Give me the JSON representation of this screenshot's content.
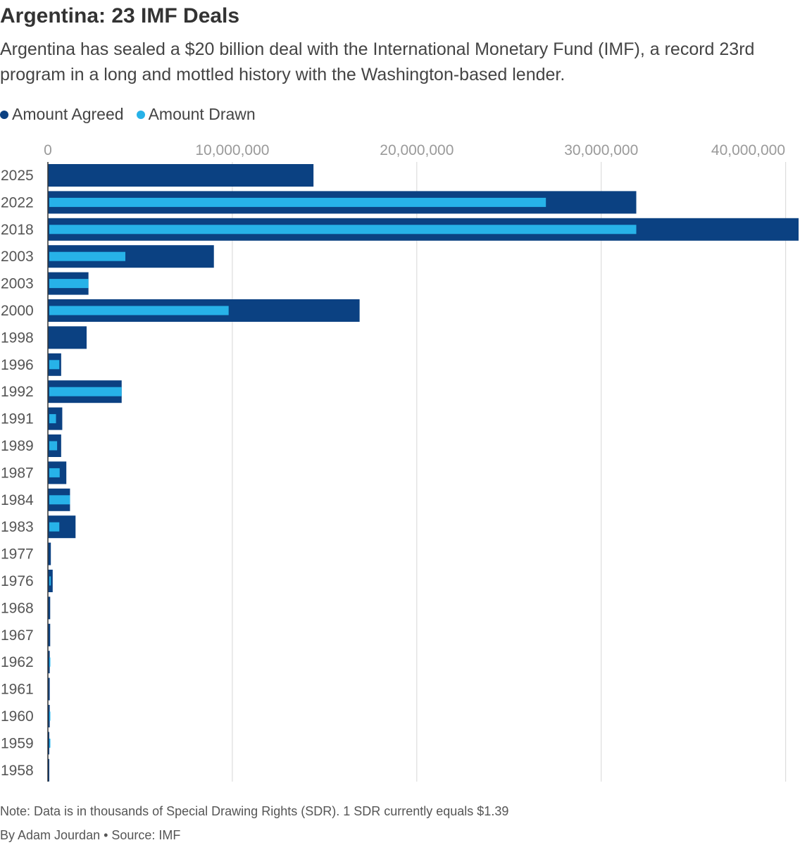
{
  "header": {
    "title": "Argentina: 23 IMF Deals",
    "subtitle": "Argentina has sealed a $20 billion deal with the International Monetary Fund (IMF), a record 23rd program in a long and mottled history with the Washington-based lender."
  },
  "legend": {
    "agreed_label": "Amount Agreed",
    "drawn_label": "Amount Drawn"
  },
  "footer": {
    "note": "Note: Data is in thousands of Special Drawing Rights (SDR). 1 SDR currently equals $1.39",
    "credit": "By Adam Jourdan • Source: IMF"
  },
  "colors": {
    "agreed": "#0b4182",
    "drawn": "#27b2e8",
    "grid": "#d6d6d6",
    "tick_text": "#9a9a9a",
    "category_text": "#555555"
  },
  "chart_data": {
    "type": "bar",
    "orientation": "horizontal",
    "categories": [
      "2025",
      "2022",
      "2018",
      "2003",
      "2003",
      "2000",
      "1998",
      "1996",
      "1992",
      "1991",
      "1989",
      "1987",
      "1984",
      "1983",
      "1977",
      "1976",
      "1968",
      "1967",
      "1962",
      "1961",
      "1960",
      "1959",
      "1958"
    ],
    "series": [
      {
        "name": "Amount Agreed",
        "values": [
          14400000,
          31900000,
          40700000,
          9000000,
          2200000,
          16900000,
          2100000,
          720000,
          4000000,
          780000,
          720000,
          1000000,
          1200000,
          1500000,
          160000,
          260000,
          125000,
          125000,
          100000,
          100000,
          100000,
          75000,
          75000
        ]
      },
      {
        "name": "Amount Drawn",
        "values": [
          0,
          27000000,
          31900000,
          4200000,
          2200000,
          9800000,
          0,
          620000,
          4000000,
          440000,
          500000,
          640000,
          1200000,
          620000,
          0,
          160000,
          0,
          0,
          100000,
          0,
          75000,
          75000,
          0
        ]
      }
    ],
    "x_ticks": [
      0,
      10000000,
      20000000,
      30000000,
      40000000
    ],
    "x_tick_labels": [
      "0",
      "10,000,000",
      "20,000,000",
      "30,000,000",
      "40,000,000"
    ],
    "xlim": [
      0,
      40700000
    ],
    "grid": true,
    "legend_position": "top-left"
  }
}
